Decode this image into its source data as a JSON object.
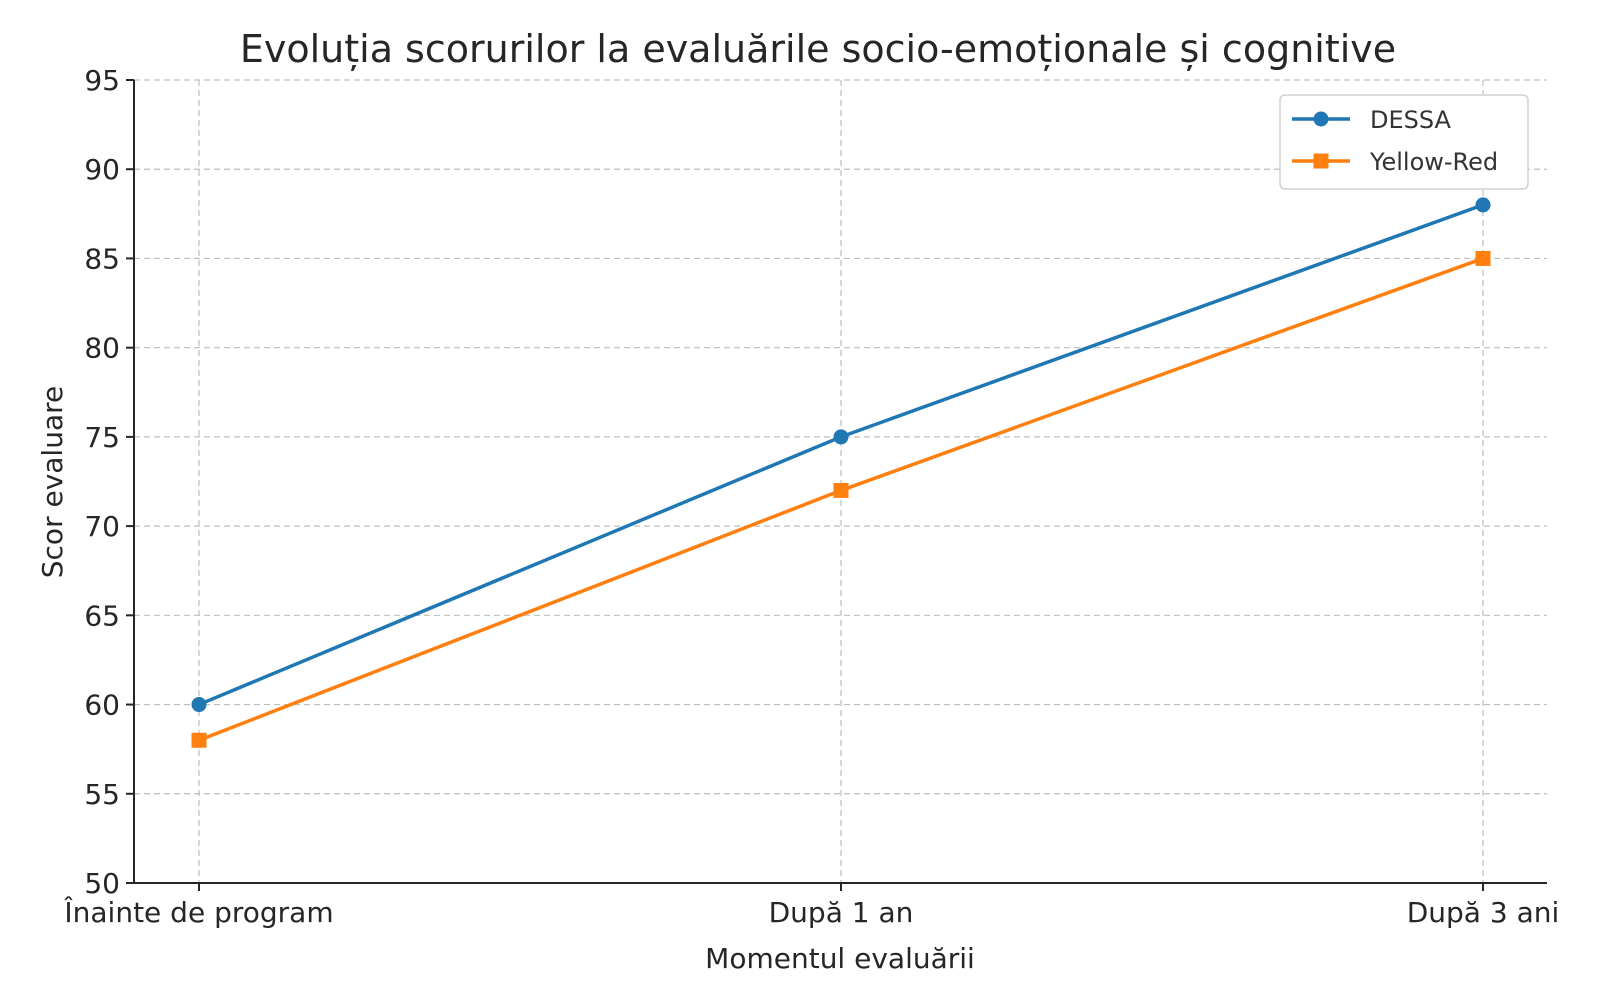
{
  "chart_data": {
    "type": "line",
    "title": "Evoluția scorurilor la evaluările socio-emoționale și cognitive",
    "xlabel": "Momentul evaluării",
    "ylabel": "Scor evaluare",
    "categories": [
      "Înainte de program",
      "După 1 an",
      "După 3 ani"
    ],
    "ylim": [
      50,
      95
    ],
    "yticks": [
      50,
      55,
      60,
      65,
      70,
      75,
      80,
      85,
      90,
      95
    ],
    "grid": true,
    "legend_position": "top-right",
    "series": [
      {
        "name": "DESSA",
        "values": [
          60,
          75,
          88
        ],
        "color": "#1f77b4",
        "marker": "circle"
      },
      {
        "name": "Yellow-Red",
        "values": [
          58,
          72,
          85
        ],
        "color": "#ff7f0e",
        "marker": "square"
      }
    ]
  }
}
